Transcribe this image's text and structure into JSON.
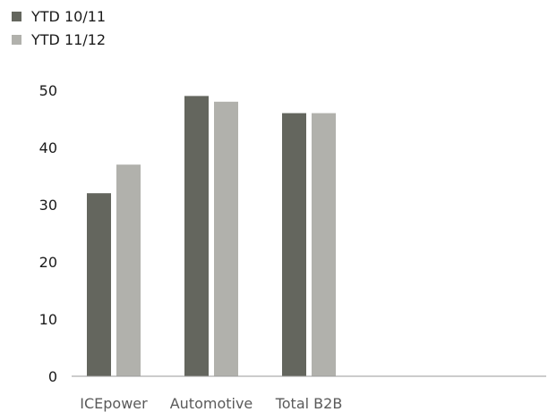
{
  "chart_data": {
    "type": "bar",
    "categories": [
      "ICEpower",
      "Automotive",
      "Total B2B"
    ],
    "series": [
      {
        "name": "YTD 10/11",
        "color": "#64665e",
        "values": [
          32,
          49,
          46
        ]
      },
      {
        "name": "YTD 11/12",
        "color": "#b1b1ac",
        "values": [
          37,
          48,
          46
        ]
      }
    ],
    "y_ticks": [
      0,
      10,
      20,
      30,
      40,
      50
    ],
    "ylim": [
      0,
      50
    ],
    "grid": false,
    "legend_position": "top-left"
  }
}
